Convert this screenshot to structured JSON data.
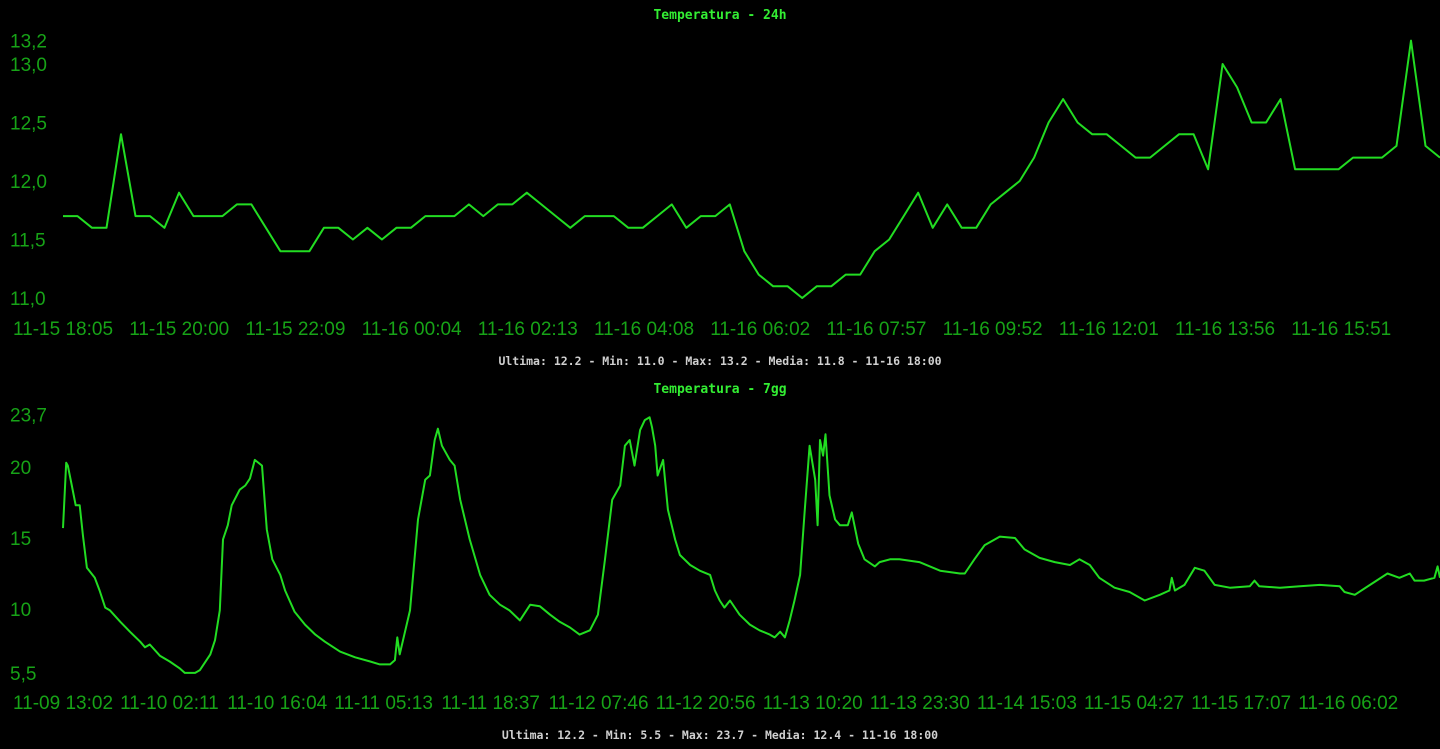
{
  "colors": {
    "background": "#000000",
    "line": "#22dd22",
    "title": "#33ee33",
    "tick": "#17a317",
    "footer": "#d0d0d0"
  },
  "chart_data": [
    {
      "type": "line",
      "title": "Temperatura - 24h",
      "footer": "Ultima: 12.2 - Min: 11.0 - Max: 13.2 - Media: 11.8 - 11-16 18:00",
      "x_unit": "hours since 11-15 18:05 (15 min steps)",
      "x_step": 0.25,
      "ylim": [
        11.0,
        13.2
      ],
      "y_ticks": [
        13.2,
        13.0,
        12.5,
        12.0,
        11.5,
        11.0
      ],
      "y_tick_labels": [
        "13,2",
        "13,0",
        "12,5",
        "12,0",
        "11,5",
        "11,0"
      ],
      "x_tick_labels": [
        "11-15 18:05",
        "11-15 20:00",
        "11-15 22:09",
        "11-16 00:04",
        "11-16 02:13",
        "11-16 04:08",
        "11-16 06:02",
        "11-16 07:57",
        "11-16 09:52",
        "11-16 12:01",
        "11-16 13:56",
        "11-16 15:51"
      ],
      "values": [
        11.7,
        11.7,
        11.6,
        11.6,
        12.4,
        11.7,
        11.7,
        11.6,
        11.9,
        11.7,
        11.7,
        11.7,
        11.8,
        11.8,
        11.6,
        11.4,
        11.4,
        11.4,
        11.6,
        11.6,
        11.5,
        11.6,
        11.5,
        11.6,
        11.6,
        11.7,
        11.7,
        11.7,
        11.8,
        11.7,
        11.8,
        11.8,
        11.9,
        11.8,
        11.7,
        11.6,
        11.7,
        11.7,
        11.7,
        11.6,
        11.6,
        11.7,
        11.8,
        11.6,
        11.7,
        11.7,
        11.8,
        11.4,
        11.2,
        11.1,
        11.1,
        11.0,
        11.1,
        11.1,
        11.2,
        11.2,
        11.4,
        11.5,
        11.7,
        11.9,
        11.6,
        11.8,
        11.6,
        11.6,
        11.8,
        11.9,
        12.0,
        12.2,
        12.5,
        12.7,
        12.5,
        12.4,
        12.4,
        12.3,
        12.2,
        12.2,
        12.3,
        12.4,
        12.4,
        12.1,
        13.0,
        12.8,
        12.5,
        12.5,
        12.7,
        12.1,
        12.1,
        12.1,
        12.1,
        12.2,
        12.2,
        12.2,
        12.3,
        13.2,
        12.3,
        12.2
      ],
      "grid": false,
      "legend": "none"
    },
    {
      "type": "line",
      "title": "Temperatura - 7gg",
      "footer": "Ultima: 12.2 - Min: 5.5 - Max: 23.7 - Media: 12.4 - 11-16 18:00",
      "x_unit": "hours since 11-09 13:02",
      "xlim": [
        0,
        173
      ],
      "ylim": [
        5.5,
        23.7
      ],
      "y_ticks": [
        23.7,
        20,
        15,
        10,
        5.5
      ],
      "y_tick_labels": [
        "23,7",
        "20",
        "15",
        "10",
        "5,5"
      ],
      "x_tick_labels": [
        "11-09 13:02",
        "11-10 02:11",
        "11-10 16:04",
        "11-11 05:13",
        "11-11 18:37",
        "11-12 07:46",
        "11-12 20:56",
        "11-13 10:20",
        "11-13 23:30",
        "11-14 15:03",
        "11-15 04:27",
        "11-15 17:07",
        "11-16 06:02"
      ],
      "points": [
        [
          0,
          15.7
        ],
        [
          0.4,
          20.3
        ],
        [
          0.6,
          20.1
        ],
        [
          1.1,
          18.7
        ],
        [
          1.6,
          17.3
        ],
        [
          2.1,
          17.3
        ],
        [
          2.5,
          15.2
        ],
        [
          3.0,
          12.9
        ],
        [
          4.0,
          12.2
        ],
        [
          4.6,
          11.3
        ],
        [
          5.3,
          10.1
        ],
        [
          5.9,
          9.9
        ],
        [
          7.2,
          9.1
        ],
        [
          8.4,
          8.4
        ],
        [
          9.7,
          7.7
        ],
        [
          10.3,
          7.3
        ],
        [
          10.9,
          7.5
        ],
        [
          12.2,
          6.7
        ],
        [
          13.4,
          6.3
        ],
        [
          14.7,
          5.8
        ],
        [
          15.3,
          5.5
        ],
        [
          16.6,
          5.5
        ],
        [
          17.2,
          5.7
        ],
        [
          18.5,
          6.8
        ],
        [
          19.1,
          7.8
        ],
        [
          19.7,
          9.9
        ],
        [
          20.1,
          14.9
        ],
        [
          20.7,
          15.9
        ],
        [
          21.2,
          17.3
        ],
        [
          22.2,
          18.4
        ],
        [
          22.9,
          18.7
        ],
        [
          23.5,
          19.2
        ],
        [
          24.1,
          20.5
        ],
        [
          25.0,
          20.1
        ],
        [
          25.6,
          15.6
        ],
        [
          26.3,
          13.5
        ],
        [
          27.3,
          12.4
        ],
        [
          27.9,
          11.3
        ],
        [
          29.1,
          9.8
        ],
        [
          30.4,
          8.9
        ],
        [
          31.7,
          8.2
        ],
        [
          32.9,
          7.7
        ],
        [
          34.8,
          7.0
        ],
        [
          36.7,
          6.6
        ],
        [
          38.6,
          6.3
        ],
        [
          39.8,
          6.1
        ],
        [
          41.1,
          6.1
        ],
        [
          41.7,
          6.4
        ],
        [
          42.0,
          8.0
        ],
        [
          42.3,
          6.8
        ],
        [
          43.6,
          9.9
        ],
        [
          44.6,
          16.3
        ],
        [
          45.5,
          19.1
        ],
        [
          46.1,
          19.4
        ],
        [
          46.7,
          21.9
        ],
        [
          47.1,
          22.7
        ],
        [
          47.6,
          21.5
        ],
        [
          48.6,
          20.5
        ],
        [
          49.2,
          20.1
        ],
        [
          49.9,
          17.7
        ],
        [
          51.1,
          14.9
        ],
        [
          52.4,
          12.4
        ],
        [
          53.6,
          11.0
        ],
        [
          54.9,
          10.3
        ],
        [
          56.1,
          9.9
        ],
        [
          57.4,
          9.2
        ],
        [
          58.7,
          10.3
        ],
        [
          59.9,
          10.2
        ],
        [
          61.2,
          9.6
        ],
        [
          62.4,
          9.1
        ],
        [
          63.7,
          8.7
        ],
        [
          64.9,
          8.2
        ],
        [
          66.2,
          8.5
        ],
        [
          67.2,
          9.6
        ],
        [
          68.1,
          13.5
        ],
        [
          69.0,
          17.7
        ],
        [
          70.0,
          18.7
        ],
        [
          70.6,
          21.5
        ],
        [
          71.2,
          21.9
        ],
        [
          71.8,
          20.1
        ],
        [
          72.5,
          22.6
        ],
        [
          73.1,
          23.3
        ],
        [
          73.7,
          23.5
        ],
        [
          74.0,
          22.8
        ],
        [
          74.4,
          21.5
        ],
        [
          74.7,
          19.4
        ],
        [
          75.4,
          20.5
        ],
        [
          76.0,
          17.0
        ],
        [
          76.9,
          14.9
        ],
        [
          77.5,
          13.8
        ],
        [
          78.8,
          13.1
        ],
        [
          80.0,
          12.7
        ],
        [
          81.3,
          12.4
        ],
        [
          81.9,
          11.3
        ],
        [
          82.5,
          10.6
        ],
        [
          83.1,
          10.1
        ],
        [
          83.8,
          10.6
        ],
        [
          85.0,
          9.6
        ],
        [
          86.3,
          8.9
        ],
        [
          87.5,
          8.5
        ],
        [
          88.8,
          8.2
        ],
        [
          89.4,
          8.0
        ],
        [
          90.1,
          8.4
        ],
        [
          90.7,
          8.0
        ],
        [
          91.3,
          9.2
        ],
        [
          91.9,
          10.6
        ],
        [
          92.6,
          12.4
        ],
        [
          93.2,
          17.0
        ],
        [
          93.8,
          21.5
        ],
        [
          94.5,
          19.1
        ],
        [
          94.8,
          15.9
        ],
        [
          95.1,
          21.9
        ],
        [
          95.5,
          20.8
        ],
        [
          95.8,
          22.3
        ],
        [
          96.3,
          18.0
        ],
        [
          97.0,
          16.3
        ],
        [
          97.6,
          15.9
        ],
        [
          98.6,
          15.9
        ],
        [
          99.1,
          16.8
        ],
        [
          99.9,
          14.6
        ],
        [
          100.7,
          13.5
        ],
        [
          102.0,
          13.0
        ],
        [
          102.6,
          13.3
        ],
        [
          103.9,
          13.5
        ],
        [
          105.1,
          13.5
        ],
        [
          107.6,
          13.3
        ],
        [
          110.2,
          12.7
        ],
        [
          112.7,
          12.5
        ],
        [
          113.3,
          12.5
        ],
        [
          114.5,
          13.5
        ],
        [
          115.8,
          14.5
        ],
        [
          117.7,
          15.1
        ],
        [
          119.6,
          15.0
        ],
        [
          120.8,
          14.2
        ],
        [
          122.7,
          13.6
        ],
        [
          124.6,
          13.3
        ],
        [
          126.5,
          13.1
        ],
        [
          127.7,
          13.5
        ],
        [
          129.0,
          13.1
        ],
        [
          130.2,
          12.2
        ],
        [
          132.1,
          11.5
        ],
        [
          134.0,
          11.2
        ],
        [
          135.9,
          10.6
        ],
        [
          137.8,
          11.0
        ],
        [
          139.0,
          11.3
        ],
        [
          139.3,
          12.2
        ],
        [
          139.7,
          11.3
        ],
        [
          140.9,
          11.7
        ],
        [
          142.2,
          12.9
        ],
        [
          143.4,
          12.7
        ],
        [
          144.7,
          11.7
        ],
        [
          146.6,
          11.5
        ],
        [
          149.1,
          11.6
        ],
        [
          149.7,
          12.0
        ],
        [
          150.3,
          11.6
        ],
        [
          152.9,
          11.5
        ],
        [
          155.4,
          11.6
        ],
        [
          157.9,
          11.7
        ],
        [
          160.4,
          11.6
        ],
        [
          161.0,
          11.2
        ],
        [
          162.3,
          11.0
        ],
        [
          164.2,
          11.7
        ],
        [
          166.4,
          12.5
        ],
        [
          167.9,
          12.2
        ],
        [
          169.2,
          12.5
        ],
        [
          169.8,
          12.0
        ],
        [
          171.0,
          12.0
        ],
        [
          172.3,
          12.2
        ],
        [
          172.7,
          13.0
        ],
        [
          173.0,
          12.2
        ]
      ],
      "grid": false,
      "legend": "none"
    }
  ]
}
